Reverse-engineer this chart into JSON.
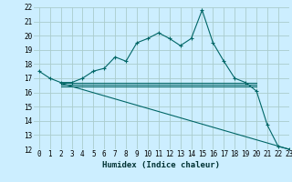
{
  "xlabel": "Humidex (Indice chaleur)",
  "background_color": "#cceeff",
  "grid_color": "#aacccc",
  "line_color": "#006666",
  "x_values": [
    0,
    1,
    2,
    3,
    4,
    5,
    6,
    7,
    8,
    9,
    10,
    11,
    12,
    13,
    14,
    15,
    16,
    17,
    18,
    19,
    20,
    21,
    22,
    23
  ],
  "series1": [
    17.5,
    17.0,
    16.7,
    16.7,
    17.0,
    17.5,
    17.7,
    18.5,
    18.2,
    19.5,
    19.8,
    20.2,
    19.8,
    19.3,
    19.8,
    21.8,
    19.5,
    18.2,
    17.0,
    16.7,
    16.1,
    13.7,
    12.2,
    12.0
  ],
  "flat_lines": [
    {
      "x0": 2,
      "x1": 20,
      "y0": 16.65,
      "y1": 16.65
    },
    {
      "x0": 2,
      "x1": 20,
      "y0": 16.55,
      "y1": 16.55
    },
    {
      "x0": 2,
      "x1": 20,
      "y0": 16.45,
      "y1": 16.45
    }
  ],
  "diag_line": {
    "x0": 2,
    "x1": 23,
    "y0": 16.65,
    "y1": 12.0
  },
  "ylim": [
    12,
    22
  ],
  "xlim": [
    -0.5,
    23
  ],
  "yticks": [
    12,
    13,
    14,
    15,
    16,
    17,
    18,
    19,
    20,
    21,
    22
  ],
  "xticks": [
    0,
    1,
    2,
    3,
    4,
    5,
    6,
    7,
    8,
    9,
    10,
    11,
    12,
    13,
    14,
    15,
    16,
    17,
    18,
    19,
    20,
    21,
    22,
    23
  ],
  "tick_fontsize": 5.5,
  "xlabel_fontsize": 6.5
}
